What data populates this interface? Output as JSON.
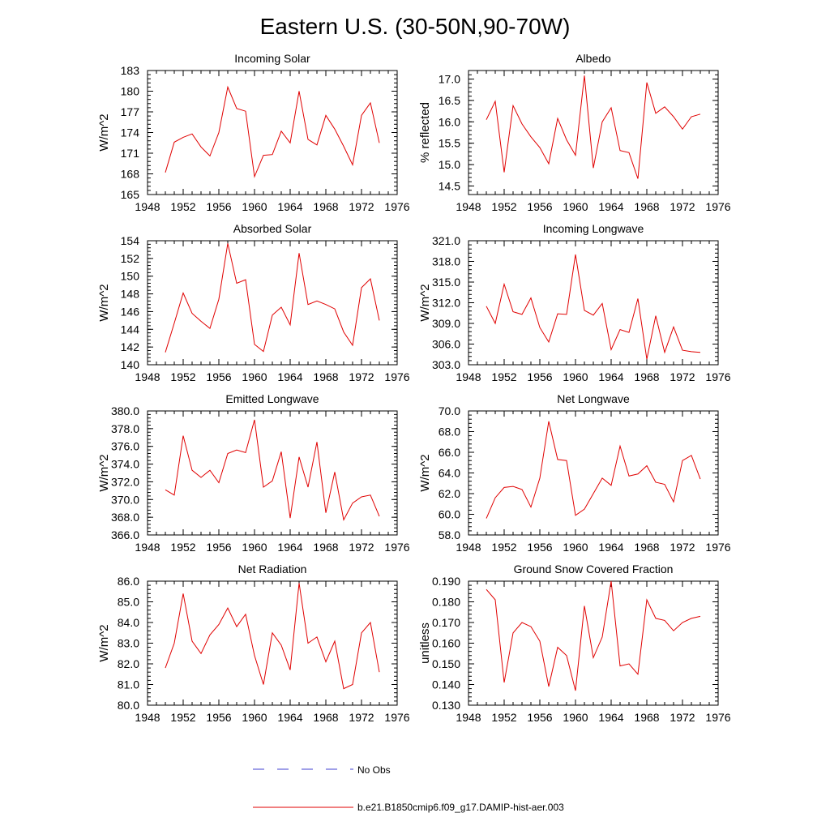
{
  "title": "Eastern U.S. (30-50N,90-70W)",
  "legend": [
    {
      "label": "No Obs",
      "style": "dashed",
      "color": "#4040d0"
    },
    {
      "label": "b.e21.B1850cmip6.f09_g17.DAMIP-hist-aer.003",
      "style": "solid",
      "color": "#e00000"
    }
  ],
  "chart_data": [
    {
      "type": "line",
      "title": "Incoming Solar",
      "ylabel": "W/m^2",
      "xlim": [
        1948,
        1976
      ],
      "ylim": [
        165,
        183
      ],
      "xticks": [
        "1948",
        "1952",
        "1956",
        "1960",
        "1964",
        "1968",
        "1972",
        "1976"
      ],
      "yticks": [
        "165",
        "168",
        "171",
        "174",
        "177",
        "180",
        "183"
      ],
      "series": [
        {
          "color": "#e00000",
          "x": [
            1950,
            1951,
            1952,
            1953,
            1954,
            1955,
            1956,
            1957,
            1958,
            1959,
            1960,
            1961,
            1962,
            1963,
            1964,
            1965,
            1966,
            1967,
            1968,
            1969,
            1970,
            1971,
            1972,
            1973,
            1974
          ],
          "y": [
            168.2,
            172.6,
            173.3,
            173.8,
            171.9,
            170.6,
            174.0,
            180.6,
            177.5,
            177.1,
            167.6,
            170.7,
            170.8,
            174.2,
            172.5,
            180.0,
            173.0,
            172.2,
            176.5,
            174.5,
            172.0,
            169.3,
            176.5,
            178.3,
            172.5
          ]
        }
      ]
    },
    {
      "type": "line",
      "title": "Albedo",
      "ylabel": "% reflected",
      "xlim": [
        1948,
        1976
      ],
      "ylim": [
        14.3,
        17.2
      ],
      "xticks": [
        "1948",
        "1952",
        "1956",
        "1960",
        "1964",
        "1968",
        "1972",
        "1976"
      ],
      "yticks": [
        "14.5",
        "15.0",
        "15.5",
        "16.0",
        "16.5",
        "17.0"
      ],
      "series": [
        {
          "color": "#e00000",
          "x": [
            1950,
            1951,
            1952,
            1953,
            1954,
            1955,
            1956,
            1957,
            1958,
            1959,
            1960,
            1961,
            1962,
            1963,
            1964,
            1965,
            1966,
            1967,
            1968,
            1969,
            1970,
            1971,
            1972,
            1973,
            1974
          ],
          "y": [
            16.05,
            16.48,
            14.82,
            16.38,
            15.95,
            15.65,
            15.4,
            15.02,
            16.08,
            15.58,
            15.22,
            17.08,
            14.92,
            16.0,
            16.33,
            15.33,
            15.28,
            14.67,
            16.92,
            16.2,
            16.35,
            16.12,
            15.83,
            16.12,
            16.18
          ]
        }
      ]
    },
    {
      "type": "line",
      "title": "Absorbed Solar",
      "ylabel": "W/m^2",
      "xlim": [
        1948,
        1976
      ],
      "ylim": [
        140,
        154
      ],
      "xticks": [
        "1948",
        "1952",
        "1956",
        "1960",
        "1964",
        "1968",
        "1972",
        "1976"
      ],
      "yticks": [
        "140",
        "142",
        "144",
        "146",
        "148",
        "150",
        "152",
        "154"
      ],
      "series": [
        {
          "color": "#e00000",
          "x": [
            1950,
            1951,
            1952,
            1953,
            1954,
            1955,
            1956,
            1957,
            1958,
            1959,
            1960,
            1961,
            1962,
            1963,
            1964,
            1965,
            1966,
            1967,
            1968,
            1969,
            1970,
            1971,
            1972,
            1973,
            1974
          ],
          "y": [
            141.4,
            144.7,
            148.1,
            145.8,
            144.9,
            144.1,
            147.4,
            153.7,
            149.2,
            149.6,
            142.3,
            141.5,
            145.6,
            146.5,
            144.5,
            152.6,
            146.8,
            147.2,
            146.8,
            146.3,
            143.7,
            142.2,
            148.7,
            149.7,
            145.0
          ]
        }
      ]
    },
    {
      "type": "line",
      "title": "Incoming Longwave",
      "ylabel": "W/m^2",
      "xlim": [
        1948,
        1976
      ],
      "ylim": [
        303,
        321
      ],
      "xticks": [
        "1948",
        "1952",
        "1956",
        "1960",
        "1964",
        "1968",
        "1972",
        "1976"
      ],
      "yticks": [
        "303.0",
        "306.0",
        "309.0",
        "312.0",
        "315.0",
        "318.0",
        "321.0"
      ],
      "series": [
        {
          "color": "#e00000",
          "x": [
            1950,
            1951,
            1952,
            1953,
            1954,
            1955,
            1956,
            1957,
            1958,
            1959,
            1960,
            1961,
            1962,
            1963,
            1964,
            1965,
            1966,
            1967,
            1968,
            1969,
            1970,
            1971,
            1972,
            1973,
            1974
          ],
          "y": [
            311.5,
            309.0,
            314.7,
            310.7,
            310.3,
            312.7,
            308.4,
            306.3,
            310.4,
            310.3,
            319.0,
            310.9,
            310.2,
            311.9,
            305.2,
            308.1,
            307.7,
            312.6,
            303.8,
            310.1,
            304.8,
            308.5,
            305.1,
            304.9,
            304.8
          ]
        }
      ]
    },
    {
      "type": "line",
      "title": "Emitted Longwave",
      "ylabel": "W/m^2",
      "xlim": [
        1948,
        1976
      ],
      "ylim": [
        366,
        380
      ],
      "xticks": [
        "1948",
        "1952",
        "1956",
        "1960",
        "1964",
        "1968",
        "1972",
        "1976"
      ],
      "yticks": [
        "366.0",
        "368.0",
        "370.0",
        "372.0",
        "374.0",
        "376.0",
        "378.0",
        "380.0"
      ],
      "series": [
        {
          "color": "#e00000",
          "x": [
            1950,
            1951,
            1952,
            1953,
            1954,
            1955,
            1956,
            1957,
            1958,
            1959,
            1960,
            1961,
            1962,
            1963,
            1964,
            1965,
            1966,
            1967,
            1968,
            1969,
            1970,
            1971,
            1972,
            1973,
            1974
          ],
          "y": [
            371.1,
            370.5,
            377.2,
            373.3,
            372.5,
            373.3,
            371.9,
            375.2,
            375.6,
            375.3,
            379.0,
            371.4,
            372.1,
            375.4,
            367.9,
            374.8,
            371.4,
            376.5,
            368.5,
            373.1,
            367.7,
            369.6,
            370.3,
            370.5,
            368.1
          ]
        }
      ]
    },
    {
      "type": "line",
      "title": "Net Longwave",
      "ylabel": "W/m^2",
      "xlim": [
        1948,
        1976
      ],
      "ylim": [
        58,
        70
      ],
      "xticks": [
        "1948",
        "1952",
        "1956",
        "1960",
        "1964",
        "1968",
        "1972",
        "1976"
      ],
      "yticks": [
        "58.0",
        "60.0",
        "62.0",
        "64.0",
        "66.0",
        "68.0",
        "70.0"
      ],
      "series": [
        {
          "color": "#e00000",
          "x": [
            1950,
            1951,
            1952,
            1953,
            1954,
            1955,
            1956,
            1957,
            1958,
            1959,
            1960,
            1961,
            1962,
            1963,
            1964,
            1965,
            1966,
            1967,
            1968,
            1969,
            1970,
            1971,
            1972,
            1973,
            1974
          ],
          "y": [
            59.6,
            61.6,
            62.6,
            62.7,
            62.4,
            60.7,
            63.5,
            69.0,
            65.3,
            65.2,
            59.9,
            60.5,
            62.0,
            63.5,
            62.8,
            66.6,
            63.7,
            63.9,
            64.7,
            63.1,
            62.9,
            61.2,
            65.2,
            65.7,
            63.4
          ]
        }
      ]
    },
    {
      "type": "line",
      "title": "Net Radiation",
      "ylabel": "W/m^2",
      "xlim": [
        1948,
        1976
      ],
      "ylim": [
        80,
        86
      ],
      "xticks": [
        "1948",
        "1952",
        "1956",
        "1960",
        "1964",
        "1968",
        "1972",
        "1976"
      ],
      "yticks": [
        "80.0",
        "81.0",
        "82.0",
        "83.0",
        "84.0",
        "85.0",
        "86.0"
      ],
      "series": [
        {
          "color": "#e00000",
          "x": [
            1950,
            1951,
            1952,
            1953,
            1954,
            1955,
            1956,
            1957,
            1958,
            1959,
            1960,
            1961,
            1962,
            1963,
            1964,
            1965,
            1966,
            1967,
            1968,
            1969,
            1970,
            1971,
            1972,
            1973,
            1974
          ],
          "y": [
            81.8,
            83.0,
            85.4,
            83.1,
            82.5,
            83.4,
            83.9,
            84.7,
            83.8,
            84.4,
            82.4,
            81.0,
            83.5,
            82.9,
            81.7,
            85.9,
            83.0,
            83.3,
            82.1,
            83.1,
            80.8,
            81.0,
            83.5,
            84.0,
            81.6
          ]
        }
      ]
    },
    {
      "type": "line",
      "title": "Ground Snow Covered Fraction",
      "ylabel": "unitless",
      "xlim": [
        1948,
        1976
      ],
      "ylim": [
        0.13,
        0.19
      ],
      "xticks": [
        "1948",
        "1952",
        "1956",
        "1960",
        "1964",
        "1968",
        "1972",
        "1976"
      ],
      "yticks": [
        "0.130",
        "0.140",
        "0.150",
        "0.160",
        "0.170",
        "0.180",
        "0.190"
      ],
      "series": [
        {
          "color": "#e00000",
          "x": [
            1950,
            1951,
            1952,
            1953,
            1954,
            1955,
            1956,
            1957,
            1958,
            1959,
            1960,
            1961,
            1962,
            1963,
            1964,
            1965,
            1966,
            1967,
            1968,
            1969,
            1970,
            1971,
            1972,
            1973,
            1974
          ],
          "y": [
            0.186,
            0.181,
            0.141,
            0.165,
            0.17,
            0.168,
            0.161,
            0.139,
            0.158,
            0.154,
            0.137,
            0.178,
            0.153,
            0.163,
            0.19,
            0.149,
            0.15,
            0.145,
            0.181,
            0.172,
            0.171,
            0.166,
            0.17,
            0.172,
            0.173
          ]
        }
      ]
    }
  ]
}
